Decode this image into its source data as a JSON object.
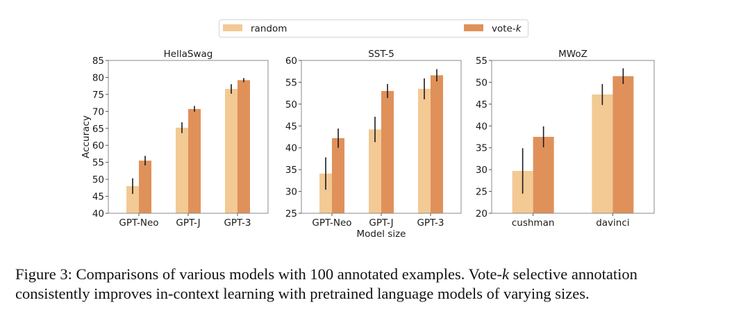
{
  "legend": {
    "items": [
      {
        "label": "random",
        "color": "#F3C994"
      },
      {
        "label": "vote-",
        "label_italic": "k",
        "color": "#E0915A"
      }
    ]
  },
  "chart_data": [
    {
      "type": "bar",
      "title": "HellaSwag",
      "xlabel": "",
      "ylabel": "Accuracy",
      "ylim": [
        40,
        85
      ],
      "yticks": [
        40,
        45,
        50,
        55,
        60,
        65,
        70,
        75,
        80,
        85
      ],
      "categories": [
        "GPT-Neo",
        "GPT-J",
        "GPT-3"
      ],
      "series": [
        {
          "name": "random",
          "values": [
            48.0,
            65.2,
            76.6
          ],
          "err_low": [
            45.7,
            63.6,
            75.2
          ],
          "err_high": [
            50.3,
            66.8,
            78.0
          ]
        },
        {
          "name": "vote-k",
          "values": [
            55.5,
            70.7,
            79.2
          ],
          "err_low": [
            54.1,
            69.9,
            78.6
          ],
          "err_high": [
            56.9,
            71.6,
            79.8
          ]
        }
      ]
    },
    {
      "type": "bar",
      "title": "SST-5",
      "xlabel": "Model size",
      "ylabel": "",
      "ylim": [
        25,
        60
      ],
      "yticks": [
        25,
        30,
        35,
        40,
        45,
        50,
        55,
        60
      ],
      "categories": [
        "GPT-Neo",
        "GPT-J",
        "GPT-3"
      ],
      "series": [
        {
          "name": "random",
          "values": [
            34.1,
            44.2,
            53.5
          ],
          "err_low": [
            30.4,
            41.3,
            51.1
          ],
          "err_high": [
            37.8,
            47.1,
            55.9
          ]
        },
        {
          "name": "vote-k",
          "values": [
            42.2,
            53.0,
            56.6
          ],
          "err_low": [
            40.0,
            51.4,
            55.2
          ],
          "err_high": [
            44.4,
            54.6,
            58.0
          ]
        }
      ]
    },
    {
      "type": "bar",
      "title": "MWoZ",
      "xlabel": "",
      "ylabel": "",
      "ylim": [
        20,
        55
      ],
      "yticks": [
        20,
        25,
        30,
        35,
        40,
        45,
        50,
        55
      ],
      "categories": [
        "cushman",
        "davinci"
      ],
      "series": [
        {
          "name": "random",
          "values": [
            29.7,
            47.2
          ],
          "err_low": [
            24.5,
            44.8
          ],
          "err_high": [
            34.9,
            49.6
          ]
        },
        {
          "name": "vote-k",
          "values": [
            37.5,
            51.4
          ],
          "err_low": [
            35.1,
            49.6
          ],
          "err_high": [
            39.9,
            53.2
          ]
        }
      ]
    }
  ],
  "caption": {
    "line1_a": "Figure 3: Comparisons of various models with 100 annotated examples. Vote-",
    "line1_k": "k",
    "line1_b": " selective annotation",
    "line2": "consistently improves in-context learning with pretrained language models of varying sizes."
  }
}
